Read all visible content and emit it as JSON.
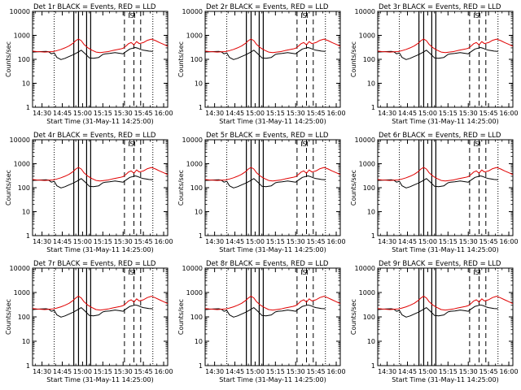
{
  "chart_data": {
    "type": "line",
    "yscale": "log",
    "ylim": [
      1,
      10000
    ],
    "y_ticks": [
      "1",
      "10",
      "100",
      "1000",
      "10000"
    ],
    "x_ticks": [
      "14:30",
      "14:45",
      "15:00",
      "15:15",
      "15:30",
      "15:45",
      "16:00"
    ],
    "x_tick_minutes": [
      -20,
      -5,
      10,
      25,
      40,
      55,
      70
    ],
    "xlim_minutes": [
      -27,
      73
    ],
    "xlabel": "Start Time (31-May-11 14:25:00)",
    "ylabel": "Counts/sec",
    "legend_text": "BLACK = Events, RED = LLD",
    "colors": {
      "events": "#000000",
      "lld": "#e00000"
    },
    "grid": false,
    "markers": {
      "dotted_lines": [
        -11,
        62
      ],
      "solid_lines": [
        3.5,
        7,
        13,
        16
      ],
      "dashed_lines": [
        41,
        48,
        53
      ],
      "bracket_lines": [
        44.5,
        48.5
      ],
      "bracket_label": "S"
    },
    "series": [
      {
        "name": "Events",
        "color": "#000000",
        "x": [
          -27,
          -21,
          -17,
          -15,
          -13,
          -11,
          -9,
          -6,
          -3,
          0,
          3,
          6,
          9,
          12,
          15,
          18,
          22,
          25,
          27,
          30,
          34,
          37,
          40,
          41,
          45,
          49,
          51,
          53,
          55,
          57,
          59,
          62
        ],
        "y": [
          200,
          210,
          215,
          205,
          170,
          185,
          120,
          98,
          110,
          130,
          155,
          190,
          240,
          170,
          115,
          110,
          120,
          160,
          170,
          175,
          190,
          180,
          170,
          190,
          270,
          310,
          290,
          260,
          240,
          230,
          220,
          215
        ]
      },
      {
        "name": "LLD",
        "color": "#e00000",
        "x": [
          -27,
          -24,
          -21,
          -18,
          -15,
          -12,
          -9,
          -6,
          -3,
          0,
          3,
          5,
          7,
          9,
          11,
          14,
          17,
          20,
          23,
          26,
          29,
          32,
          35,
          38,
          40,
          42,
          44,
          46,
          48,
          50,
          52,
          55,
          58,
          61,
          64,
          67,
          70,
          73
        ],
        "y": [
          220,
          210,
          205,
          200,
          205,
          210,
          230,
          260,
          300,
          360,
          470,
          600,
          700,
          600,
          420,
          300,
          240,
          200,
          190,
          200,
          210,
          230,
          250,
          270,
          290,
          350,
          450,
          500,
          400,
          550,
          450,
          500,
          620,
          700,
          600,
          500,
          420,
          350
        ]
      }
    ],
    "panels": [
      {
        "title": "Det 1r"
      },
      {
        "title": "Det 2r"
      },
      {
        "title": "Det 3r"
      },
      {
        "title": "Det 4r"
      },
      {
        "title": "Det 5r"
      },
      {
        "title": "Det 6r"
      },
      {
        "title": "Det 7r"
      },
      {
        "title": "Det 8r"
      },
      {
        "title": "Det 9r"
      }
    ]
  }
}
